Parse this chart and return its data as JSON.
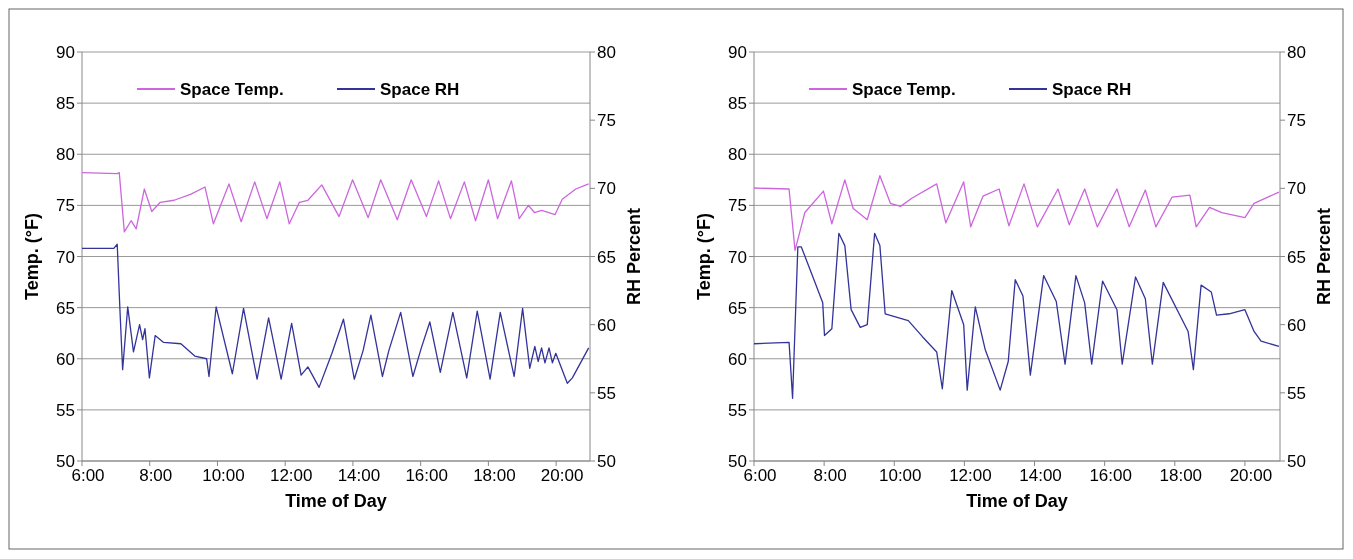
{
  "chart_data": [
    {
      "type": "line",
      "xlabel": "Time of Day",
      "ylabel": "Temp. (°F)",
      "y2label": "RH Percent",
      "xlim": [
        6,
        21
      ],
      "xticks": [
        {
          "value": 6,
          "label": "6:00"
        },
        {
          "value": 8,
          "label": "8:00"
        },
        {
          "value": 10,
          "label": "10:00"
        },
        {
          "value": 12,
          "label": "12:00"
        },
        {
          "value": 14,
          "label": "14:00"
        },
        {
          "value": 16,
          "label": "16:00"
        },
        {
          "value": 18,
          "label": "18:00"
        },
        {
          "value": 20,
          "label": "20:00"
        }
      ],
      "ylim": [
        50,
        90
      ],
      "yticks": [
        50,
        55,
        60,
        65,
        70,
        75,
        80,
        85,
        90
      ],
      "y2lim": [
        50,
        80
      ],
      "y2ticks": [
        50,
        55,
        60,
        65,
        70,
        75,
        80
      ],
      "grid": "y",
      "legend": "top",
      "series": [
        {
          "name": "Space Temp.",
          "color": "#cc66dd",
          "x": [
            6.0,
            7.04,
            7.1,
            7.25,
            7.45,
            7.6,
            7.84,
            8.06,
            8.31,
            8.72,
            9.22,
            9.63,
            9.88,
            10.34,
            10.7,
            11.1,
            11.46,
            11.84,
            12.12,
            12.42,
            12.67,
            13.08,
            13.59,
            13.99,
            14.45,
            14.82,
            15.31,
            15.72,
            16.17,
            16.53,
            16.88,
            17.29,
            17.62,
            18.0,
            18.27,
            18.68,
            18.91,
            19.18,
            19.36,
            19.57,
            19.97,
            20.18,
            20.58,
            20.96
          ],
          "values": [
            78.2,
            78.1,
            78.2,
            72.4,
            73.5,
            72.7,
            76.6,
            74.4,
            75.3,
            75.5,
            76.1,
            76.8,
            73.2,
            77.1,
            73.4,
            77.3,
            73.7,
            77.3,
            73.2,
            75.3,
            75.5,
            77.0,
            73.9,
            77.5,
            73.8,
            77.5,
            73.6,
            77.5,
            73.9,
            77.4,
            73.7,
            77.3,
            73.5,
            77.5,
            73.7,
            77.4,
            73.7,
            75.0,
            74.3,
            74.5,
            74.1,
            75.6,
            76.6,
            77.1
          ]
        },
        {
          "name": "Space RH",
          "color": "#333399",
          "axis": "y2",
          "x": [
            6.0,
            6.94,
            7.04,
            7.12,
            7.2,
            7.35,
            7.52,
            7.7,
            7.79,
            7.86,
            7.99,
            8.16,
            8.41,
            8.92,
            9.33,
            9.68,
            9.75,
            9.96,
            10.44,
            10.77,
            11.17,
            11.51,
            11.88,
            12.19,
            12.47,
            12.67,
            13.0,
            13.38,
            13.72,
            14.04,
            14.3,
            14.53,
            14.87,
            15.06,
            15.41,
            15.77,
            16.02,
            16.27,
            16.58,
            16.95,
            17.36,
            17.67,
            18.05,
            18.35,
            18.76,
            19.01,
            19.22,
            19.37,
            19.47,
            19.57,
            19.67,
            19.79,
            19.89,
            19.99,
            20.33,
            20.48,
            20.96
          ],
          "values": [
            65.6,
            65.6,
            65.9,
            61.1,
            56.7,
            61.3,
            58.0,
            60.0,
            58.9,
            59.7,
            56.1,
            59.2,
            58.7,
            58.6,
            57.7,
            57.5,
            56.2,
            61.3,
            56.4,
            61.2,
            56.0,
            60.5,
            56.0,
            60.1,
            56.3,
            56.9,
            55.4,
            57.9,
            60.4,
            56.0,
            58.1,
            60.7,
            56.2,
            58.1,
            60.9,
            56.2,
            58.3,
            60.2,
            56.5,
            60.9,
            56.1,
            61.0,
            56.0,
            60.9,
            56.2,
            61.2,
            56.8,
            58.4,
            57.3,
            58.3,
            57.2,
            58.3,
            57.2,
            57.9,
            55.7,
            56.1,
            58.3
          ]
        }
      ]
    },
    {
      "type": "line",
      "xlabel": "Time of Day",
      "ylabel": "Temp. (°F)",
      "y2label": "RH Percent",
      "xlim": [
        6,
        21
      ],
      "xticks": [
        {
          "value": 6,
          "label": "6:00"
        },
        {
          "value": 8,
          "label": "8:00"
        },
        {
          "value": 10,
          "label": "10:00"
        },
        {
          "value": 12,
          "label": "12:00"
        },
        {
          "value": 14,
          "label": "14:00"
        },
        {
          "value": 16,
          "label": "16:00"
        },
        {
          "value": 18,
          "label": "18:00"
        },
        {
          "value": 20,
          "label": "20:00"
        }
      ],
      "ylim": [
        50,
        90
      ],
      "yticks": [
        50,
        55,
        60,
        65,
        70,
        75,
        80,
        85,
        90
      ],
      "y2lim": [
        50,
        80
      ],
      "y2ticks": [
        50,
        55,
        60,
        65,
        70,
        75,
        80
      ],
      "grid": "y",
      "legend": "top",
      "series": [
        {
          "name": "Space Temp.",
          "color": "#cc66dd",
          "x": [
            6.0,
            7.0,
            7.17,
            7.45,
            7.98,
            8.22,
            8.59,
            8.83,
            9.23,
            9.59,
            9.89,
            10.18,
            10.5,
            11.21,
            11.47,
            11.98,
            12.18,
            12.53,
            12.99,
            13.27,
            13.7,
            14.08,
            14.67,
            14.99,
            15.43,
            15.79,
            16.35,
            16.7,
            17.16,
            17.46,
            17.92,
            18.43,
            18.61,
            18.99,
            19.34,
            20.0,
            20.26,
            20.97
          ],
          "values": [
            76.7,
            76.6,
            70.6,
            74.3,
            76.4,
            73.2,
            77.5,
            74.7,
            73.6,
            77.9,
            75.2,
            74.9,
            75.7,
            77.1,
            73.3,
            77.3,
            72.9,
            75.9,
            76.6,
            73.0,
            77.1,
            72.9,
            76.6,
            73.1,
            76.6,
            72.9,
            76.6,
            72.9,
            76.5,
            72.9,
            75.8,
            76.0,
            72.9,
            74.8,
            74.3,
            73.8,
            75.2,
            76.3
          ]
        },
        {
          "name": "Space RH",
          "color": "#333399",
          "axis": "y2",
          "x": [
            6.0,
            7.0,
            7.1,
            7.25,
            7.35,
            7.71,
            7.96,
            8.01,
            8.22,
            8.42,
            8.59,
            8.77,
            9.03,
            9.23,
            9.44,
            9.59,
            9.74,
            10.4,
            10.81,
            11.21,
            11.37,
            11.64,
            11.98,
            12.08,
            12.31,
            12.59,
            13.02,
            13.25,
            13.45,
            13.67,
            13.88,
            14.26,
            14.62,
            14.87,
            15.18,
            15.43,
            15.63,
            15.94,
            16.35,
            16.5,
            16.88,
            17.16,
            17.36,
            17.67,
            18.38,
            18.53,
            18.75,
            19.04,
            19.19,
            19.55,
            20.0,
            20.26,
            20.46,
            20.97
          ],
          "values": [
            58.6,
            58.7,
            54.6,
            65.7,
            65.7,
            63.3,
            61.6,
            59.2,
            59.7,
            66.7,
            65.8,
            61.1,
            59.8,
            60.0,
            66.7,
            65.8,
            60.8,
            60.3,
            59.1,
            58.0,
            55.3,
            62.5,
            60.0,
            55.2,
            61.3,
            58.2,
            55.2,
            57.3,
            63.3,
            62.1,
            56.3,
            63.6,
            61.7,
            57.1,
            63.6,
            61.6,
            57.1,
            63.2,
            61.1,
            57.1,
            63.5,
            61.9,
            57.1,
            63.1,
            59.5,
            56.7,
            62.9,
            62.4,
            60.7,
            60.8,
            61.1,
            59.5,
            58.8,
            58.4
          ]
        }
      ]
    }
  ]
}
